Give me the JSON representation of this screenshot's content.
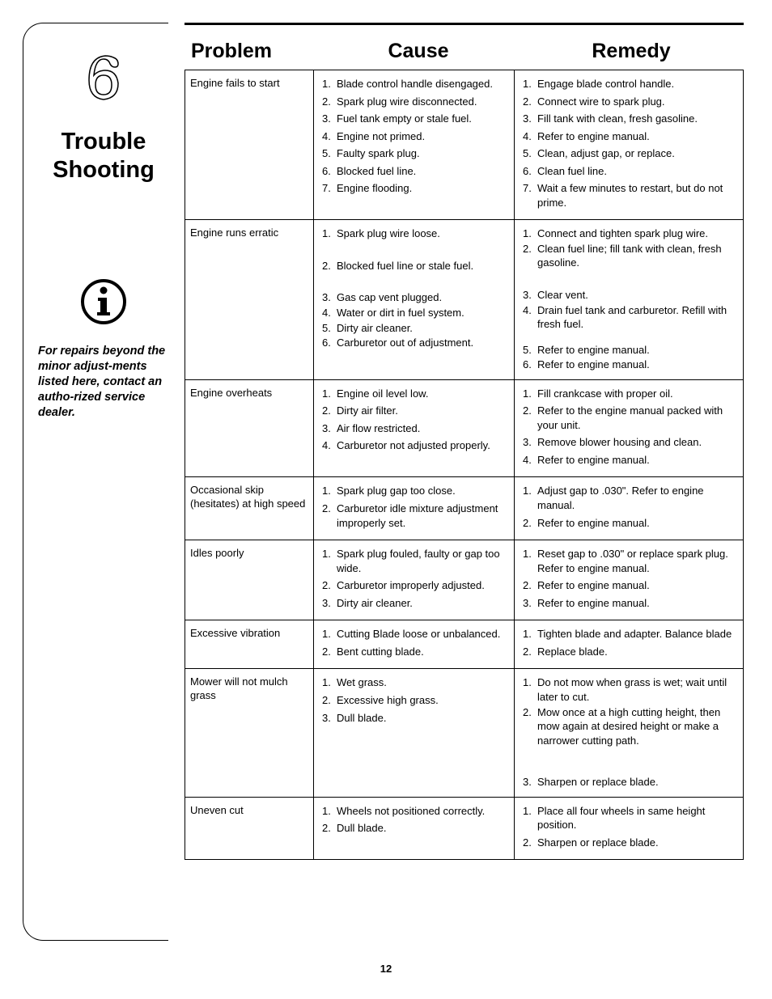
{
  "sidebar": {
    "section_number": "6",
    "title_line1": "Trouble",
    "title_line2": "Shooting",
    "note": "For repairs beyond the minor adjust-ments listed here, contact an autho-rized service dealer."
  },
  "headers": {
    "problem": "Problem",
    "cause": "Cause",
    "remedy": "Remedy"
  },
  "rows": [
    {
      "problem": "Engine fails to start",
      "causes": [
        "Blade control handle disengaged.",
        "Spark plug wire disconnected.",
        "Fuel tank empty or stale fuel.",
        "Engine not primed.",
        "Faulty spark plug.",
        "Blocked fuel line.",
        "Engine flooding."
      ],
      "remedies": [
        "Engage blade control handle.",
        "Connect wire to spark plug.",
        "Fill tank with clean, fresh gasoline.",
        "Refer to engine manual.",
        "Clean, adjust gap, or replace.",
        "Clean fuel line.",
        "Wait a few minutes to restart, but do not prime."
      ]
    },
    {
      "problem": "Engine runs erratic",
      "causes": [
        "Spark plug wire loose.",
        "Blocked fuel line or stale fuel.",
        "Gas cap vent plugged.",
        "Water or dirt in fuel system.",
        "Dirty air cleaner.",
        "Carburetor out of adjustment."
      ],
      "remedies": [
        "Connect and tighten spark plug wire.",
        "Clean fuel line; fill tank with clean, fresh gasoline.",
        "Clear vent.",
        "Drain fuel tank and carburetor. Refill with fresh fuel.",
        "Refer to engine manual.",
        "Refer to engine manual."
      ]
    },
    {
      "problem": "Engine overheats",
      "causes": [
        "Engine oil level low.",
        "Dirty air filter.",
        "Air flow restricted.",
        "Carburetor not adjusted properly."
      ],
      "remedies": [
        "Fill crankcase with proper oil.",
        "Refer to the engine manual packed with your unit.",
        "Remove blower housing and clean.",
        "Refer to engine manual."
      ]
    },
    {
      "problem": "Occasional skip (hesitates) at high speed",
      "causes": [
        "Spark plug gap too close.",
        "Carburetor idle mixture adjustment improperly set."
      ],
      "remedies": [
        "Adjust gap to .030\". Refer to engine manual.",
        "Refer to engine manual."
      ]
    },
    {
      "problem": "Idles poorly",
      "causes": [
        "Spark plug fouled, faulty or gap too wide.",
        "Carburetor improperly adjusted.",
        "Dirty air cleaner."
      ],
      "remedies": [
        "Reset gap to .030\" or replace spark plug. Refer to engine manual.",
        "Refer to engine manual.",
        "Refer to engine manual."
      ]
    },
    {
      "problem": "Excessive vibration",
      "causes": [
        "Cutting Blade loose or unbalanced.",
        "Bent cutting blade."
      ],
      "remedies": [
        "Tighten blade and adapter. Balance blade",
        "Replace blade."
      ]
    },
    {
      "problem": "Mower will not mulch grass",
      "causes": [
        "Wet grass.",
        "Excessive high grass.",
        "Dull blade."
      ],
      "remedies": [
        "Do not mow when grass is wet; wait until later to cut.",
        "Mow once at a high cutting height, then mow again at desired height or make a narrower cutting path.",
        "Sharpen or replace blade."
      ]
    },
    {
      "problem": "Uneven cut",
      "causes": [
        "Wheels not positioned correctly.",
        "Dull blade."
      ],
      "remedies": [
        "Place all four wheels in same height position.",
        "Sharpen or replace blade."
      ]
    }
  ],
  "page_number": "12",
  "row_spacing": {
    "1": [
      1,
      22,
      1,
      14,
      1,
      1
    ],
    "6": [
      1,
      34,
      1
    ]
  },
  "row_spacing_cause": {
    "1": [
      22,
      22,
      1,
      1,
      1,
      1
    ]
  }
}
